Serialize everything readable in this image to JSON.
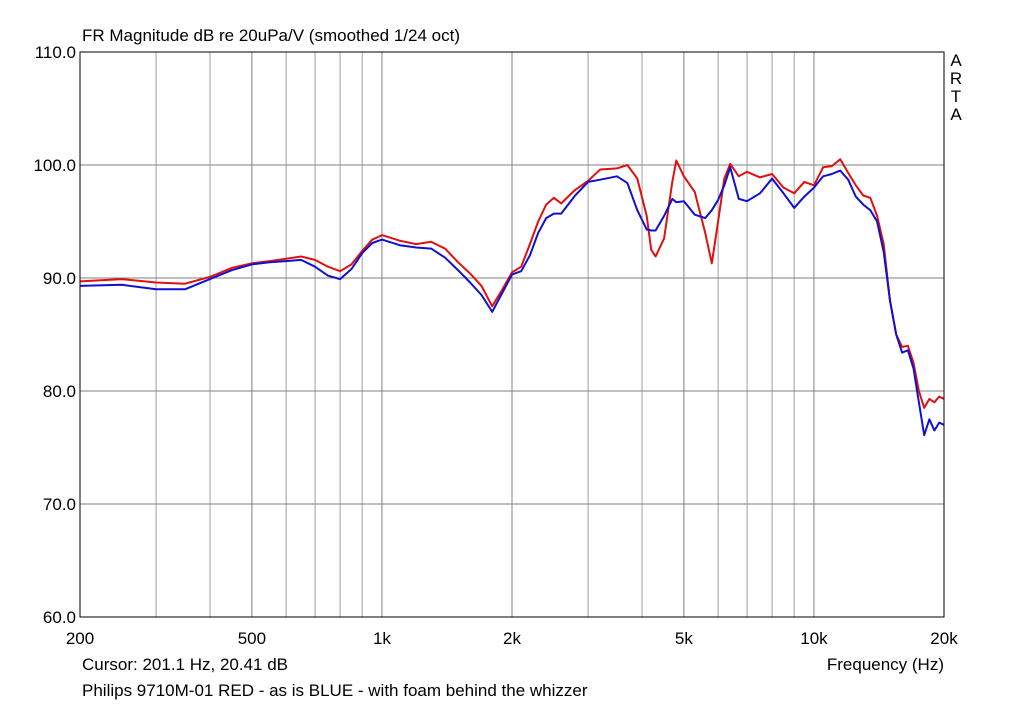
{
  "header": {
    "title": "FR Magnitude dB re 20uPa/V (smoothed 1/24 oct)"
  },
  "watermark": {
    "letters": [
      "A",
      "R",
      "T",
      "A"
    ]
  },
  "footer": {
    "cursor": "Cursor: 201.1 Hz, 20.41 dB",
    "xlabel": "Frequency (Hz)",
    "caption": "Philips 9710M-01 RED - as is  BLUE - with foam behind the whizzer"
  },
  "chart_data": {
    "type": "line",
    "title": "FR Magnitude dB re 20uPa/V (smoothed 1/24 oct)",
    "xlabel": "Frequency (Hz)",
    "ylabel": "",
    "xscale": "log",
    "xlim": [
      200,
      20000
    ],
    "ylim": [
      60,
      110
    ],
    "grid": true,
    "colors": {
      "red": "#e01010",
      "blue": "#1010d0",
      "grid": "#a0a0a0",
      "major_grid": "#808080"
    },
    "y_ticks": [
      60,
      70,
      80,
      90,
      100,
      110
    ],
    "y_tick_labels": [
      "60.0",
      "70.0",
      "80.0",
      "90.0",
      "100.0",
      "110.0"
    ],
    "x_ticks": [
      200,
      500,
      1000,
      2000,
      5000,
      10000,
      20000
    ],
    "x_tick_labels": [
      "200",
      "500",
      "1k",
      "2k",
      "5k",
      "10k",
      "20k"
    ],
    "x_minor_grid": [
      300,
      400,
      600,
      700,
      800,
      900,
      3000,
      4000,
      6000,
      7000,
      8000,
      9000
    ],
    "series": [
      {
        "color": "#e01010",
        "x": [
          200,
          250,
          300,
          350,
          400,
          450,
          500,
          550,
          600,
          650,
          700,
          750,
          800,
          850,
          900,
          950,
          1000,
          1100,
          1200,
          1300,
          1400,
          1500,
          1600,
          1700,
          1800,
          1900,
          2000,
          2100,
          2200,
          2300,
          2400,
          2500,
          2600,
          2800,
          3000,
          3200,
          3500,
          3700,
          3900,
          4100,
          4200,
          4300,
          4500,
          4700,
          4800,
          5000,
          5300,
          5600,
          5800,
          6000,
          6200,
          6400,
          6700,
          7000,
          7500,
          8000,
          8500,
          9000,
          9500,
          10000,
          10500,
          11000,
          11500,
          12000,
          12500,
          13000,
          13500,
          14000,
          14500,
          15000,
          15500,
          16000,
          16500,
          17000,
          17500,
          18000,
          18500,
          19000,
          19500,
          20000
        ],
        "y": [
          89.7,
          89.9,
          89.6,
          89.5,
          90.1,
          90.9,
          91.3,
          91.5,
          91.7,
          91.9,
          91.6,
          91.0,
          90.6,
          91.2,
          92.4,
          93.4,
          93.8,
          93.3,
          93.0,
          93.2,
          92.6,
          91.4,
          90.4,
          89.3,
          87.5,
          89.0,
          90.5,
          91.0,
          93.0,
          95.0,
          96.5,
          97.1,
          96.6,
          97.8,
          98.6,
          99.6,
          99.7,
          100.0,
          98.8,
          95.5,
          92.5,
          91.9,
          93.5,
          98.5,
          100.4,
          99.0,
          97.6,
          94.0,
          91.3,
          95.0,
          98.8,
          100.1,
          99.0,
          99.4,
          98.9,
          99.2,
          98.0,
          97.5,
          98.5,
          98.2,
          99.8,
          99.9,
          100.5,
          99.3,
          98.2,
          97.3,
          97.1,
          95.5,
          93.0,
          88.0,
          85.0,
          83.9,
          84.0,
          82.5,
          80.0,
          78.5,
          79.3,
          79.0,
          79.5,
          79.3
        ]
      },
      {
        "color": "#1010d0",
        "x": [
          200,
          250,
          300,
          350,
          400,
          450,
          500,
          550,
          600,
          650,
          700,
          750,
          800,
          850,
          900,
          950,
          1000,
          1100,
          1200,
          1300,
          1400,
          1500,
          1600,
          1700,
          1800,
          1900,
          2000,
          2100,
          2200,
          2300,
          2400,
          2500,
          2600,
          2800,
          3000,
          3200,
          3500,
          3700,
          3900,
          4100,
          4200,
          4300,
          4500,
          4700,
          4800,
          5000,
          5300,
          5600,
          5800,
          6000,
          6200,
          6400,
          6700,
          7000,
          7500,
          8000,
          8500,
          9000,
          9500,
          10000,
          10500,
          11000,
          11500,
          12000,
          12500,
          13000,
          13500,
          14000,
          14500,
          15000,
          15500,
          16000,
          16500,
          17000,
          17500,
          18000,
          18500,
          19000,
          19500,
          20000
        ],
        "y": [
          89.3,
          89.4,
          89.0,
          89.0,
          89.9,
          90.7,
          91.2,
          91.4,
          91.5,
          91.6,
          91.0,
          90.2,
          89.9,
          90.8,
          92.2,
          93.1,
          93.4,
          92.9,
          92.7,
          92.6,
          91.8,
          90.7,
          89.6,
          88.5,
          87.0,
          88.7,
          90.3,
          90.6,
          92.0,
          94.0,
          95.3,
          95.7,
          95.7,
          97.3,
          98.5,
          98.7,
          99.0,
          98.4,
          96.0,
          94.3,
          94.2,
          94.2,
          95.5,
          97.0,
          96.7,
          96.8,
          95.6,
          95.3,
          96.0,
          96.9,
          98.2,
          99.8,
          97.0,
          96.8,
          97.5,
          98.8,
          97.5,
          96.2,
          97.2,
          98.0,
          99.0,
          99.2,
          99.5,
          98.7,
          97.2,
          96.5,
          96.0,
          95.0,
          92.3,
          88.0,
          85.0,
          83.4,
          83.6,
          82.0,
          79.0,
          76.1,
          77.5,
          76.5,
          77.2,
          77.0
        ]
      }
    ]
  }
}
